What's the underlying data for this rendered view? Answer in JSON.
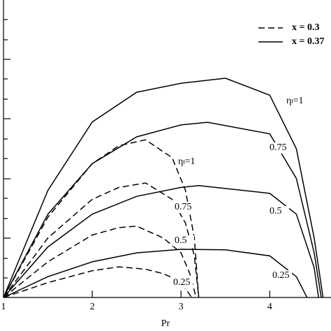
{
  "chart_data": {
    "type": "line",
    "x_label": "Pr",
    "xlim": [
      1,
      4.69
    ],
    "xticks": [
      1,
      2,
      3,
      4
    ],
    "ylim": [
      0,
      1
    ],
    "legend": "upper right",
    "series": [
      {
        "name": "x = 0.3",
        "color": "#000000",
        "dashed": true,
        "curves": [
          {
            "label": "ηₗ=1",
            "x": [
              1,
              1.5,
              2,
              2.3,
              2.6,
              2.9,
              3.05,
              3.15,
              3.2
            ],
            "values": [
              0,
              0.27,
              0.45,
              0.51,
              0.53,
              0.47,
              0.36,
              0.2,
              0
            ]
          },
          {
            "label": "0.75",
            "x": [
              1,
              1.5,
              2,
              2.3,
              2.6,
              2.9,
              3.05,
              3.15,
              3.2
            ],
            "values": [
              0,
              0.2,
              0.33,
              0.37,
              0.385,
              0.33,
              0.25,
              0.14,
              0
            ]
          },
          {
            "label": "0.5",
            "x": [
              1,
              1.5,
              2,
              2.3,
              2.5,
              2.8,
              3.0,
              3.1,
              3.17
            ],
            "values": [
              0,
              0.12,
              0.21,
              0.235,
              0.24,
              0.2,
              0.15,
              0.08,
              0
            ]
          },
          {
            "label": "0.25",
            "x": [
              1,
              1.5,
              2,
              2.3,
              2.6,
              2.8,
              2.95,
              3.05,
              3.12
            ],
            "values": [
              0,
              0.05,
              0.09,
              0.103,
              0.095,
              0.08,
              0.06,
              0.03,
              0
            ]
          }
        ]
      },
      {
        "name": "x = 0.37",
        "color": "#000000",
        "dashed": false,
        "curves": [
          {
            "label": "ηₗ=1",
            "x": [
              1,
              1.5,
              2,
              2.5,
              3,
              3.5,
              4,
              4.3,
              4.5,
              4.6
            ],
            "values": [
              0,
              0.36,
              0.59,
              0.69,
              0.72,
              0.737,
              0.68,
              0.5,
              0.2,
              0
            ]
          },
          {
            "label": "0.75",
            "x": [
              1,
              1.5,
              2,
              2.5,
              3,
              3.3,
              4,
              4.3,
              4.5,
              4.58
            ],
            "values": [
              0,
              0.28,
              0.45,
              0.54,
              0.58,
              0.589,
              0.55,
              0.4,
              0.15,
              0
            ]
          },
          {
            "label": "0.5",
            "x": [
              1,
              1.5,
              2,
              2.5,
              3,
              3.2,
              4,
              4.3,
              4.5,
              4.55
            ],
            "values": [
              0,
              0.17,
              0.28,
              0.34,
              0.37,
              0.376,
              0.35,
              0.28,
              0.1,
              0
            ]
          },
          {
            "label": "0.25",
            "x": [
              1,
              1.5,
              2,
              2.5,
              3,
              3.5,
              4,
              4.3,
              4.42
            ],
            "values": [
              0,
              0.07,
              0.12,
              0.15,
              0.162,
              0.16,
              0.14,
              0.07,
              0
            ]
          }
        ]
      }
    ]
  }
}
